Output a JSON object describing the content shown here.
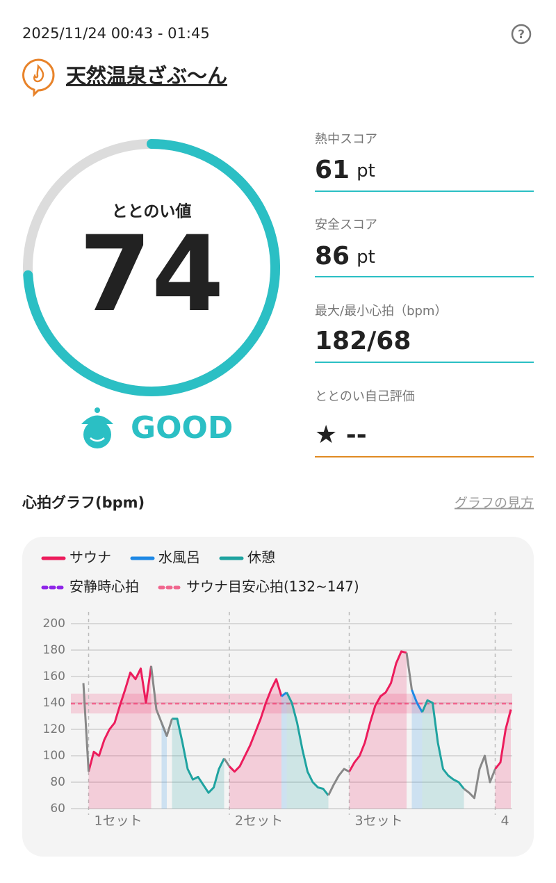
{
  "header": {
    "datetime": "2025/11/24 00:43 - 01:45",
    "facility": "天然温泉ざぶ〜ん"
  },
  "gauge": {
    "label": "ととのい値",
    "value": 74,
    "range": [
      0,
      100
    ],
    "color": "#2bbfc4",
    "status": "GOOD"
  },
  "scores": [
    {
      "label": "熱中スコア",
      "value": "61",
      "unit": "pt"
    },
    {
      "label": "安全スコア",
      "value": "86",
      "unit": "pt"
    },
    {
      "label": "最大/最小心拍（bpm）",
      "value": "182/68"
    },
    {
      "label": "ととのい自己評価",
      "value": "★ --"
    }
  ],
  "chart_header": {
    "title": "心拍グラフ(bpm)",
    "link": "グラフの見方"
  },
  "chart_data": {
    "type": "line",
    "categories": [
      null,
      "1セット",
      null,
      null,
      null,
      null,
      null,
      null,
      null,
      null,
      null,
      null,
      null,
      null,
      null,
      null,
      null,
      null,
      null,
      null,
      null,
      null,
      null,
      null,
      null,
      null,
      null,
      null,
      "2セット",
      null,
      null,
      null,
      null,
      null,
      null,
      null,
      null,
      null,
      null,
      null,
      null,
      null,
      null,
      null,
      null,
      null,
      null,
      null,
      null,
      null,
      null,
      "3セット",
      null,
      null,
      null,
      null,
      null,
      null,
      null,
      null,
      null,
      null,
      null,
      null,
      null,
      null,
      null,
      null,
      null,
      null,
      null,
      null,
      null,
      null,
      null,
      null,
      null,
      null,
      null,
      "4",
      null,
      null,
      null
    ],
    "series": [
      {
        "name": "サウナ",
        "color": "#ec1c5c",
        "area": true,
        "values": [
          null,
          88,
          103,
          100,
          112,
          120,
          125,
          138,
          150,
          163,
          158,
          166,
          140,
          168,
          null,
          null,
          null,
          null,
          null,
          null,
          null,
          null,
          null,
          null,
          null,
          null,
          null,
          null,
          92,
          88,
          92,
          100,
          108,
          118,
          128,
          140,
          150,
          158,
          145,
          null,
          null,
          null,
          null,
          null,
          null,
          null,
          null,
          null,
          null,
          null,
          null,
          88,
          95,
          100,
          110,
          125,
          138,
          145,
          148,
          155,
          170,
          179,
          178,
          null,
          null,
          null,
          null,
          null,
          null,
          null,
          null,
          null,
          null,
          null,
          null,
          null,
          null,
          null,
          null,
          90,
          95,
          120,
          135
        ]
      },
      {
        "name": "水風呂",
        "color": "#1e88e5",
        "area": true,
        "values": [
          null,
          null,
          null,
          null,
          null,
          null,
          null,
          null,
          null,
          null,
          null,
          null,
          null,
          null,
          null,
          125,
          115,
          null,
          null,
          null,
          null,
          null,
          null,
          null,
          null,
          null,
          null,
          null,
          null,
          null,
          null,
          null,
          null,
          null,
          null,
          null,
          null,
          null,
          145,
          148,
          null,
          null,
          null,
          null,
          null,
          null,
          null,
          null,
          null,
          null,
          null,
          null,
          null,
          null,
          null,
          null,
          null,
          null,
          null,
          null,
          null,
          null,
          null,
          150,
          140,
          133,
          null,
          null,
          null,
          null,
          null,
          null,
          null,
          null,
          null,
          null,
          null,
          null,
          null,
          null,
          null,
          null,
          null
        ]
      },
      {
        "name": "休憩",
        "color": "#1fa3a0",
        "area": true,
        "values": [
          null,
          null,
          null,
          null,
          null,
          null,
          null,
          null,
          null,
          null,
          null,
          null,
          null,
          null,
          null,
          null,
          null,
          128,
          128,
          110,
          90,
          82,
          84,
          78,
          72,
          76,
          90,
          98,
          null,
          null,
          null,
          null,
          null,
          null,
          null,
          null,
          null,
          null,
          null,
          148,
          140,
          125,
          105,
          88,
          80,
          76,
          75,
          70,
          null,
          null,
          null,
          null,
          null,
          null,
          null,
          null,
          null,
          null,
          null,
          null,
          null,
          null,
          null,
          null,
          null,
          133,
          142,
          140,
          110,
          90,
          85,
          82,
          80,
          75,
          null,
          null,
          null,
          null,
          null,
          null,
          null,
          null,
          null
        ]
      },
      {
        "color": "#888888",
        "area": false,
        "values": [
          155,
          88,
          null,
          null,
          null,
          null,
          null,
          null,
          null,
          null,
          null,
          null,
          null,
          168,
          135,
          125,
          115,
          128,
          null,
          null,
          null,
          null,
          null,
          null,
          null,
          null,
          null,
          98,
          92,
          null,
          null,
          null,
          null,
          null,
          null,
          null,
          null,
          null,
          null,
          null,
          null,
          null,
          null,
          null,
          null,
          null,
          null,
          70,
          78,
          85,
          90,
          88,
          null,
          null,
          null,
          null,
          null,
          null,
          null,
          null,
          null,
          null,
          178,
          150,
          null,
          null,
          null,
          null,
          null,
          null,
          null,
          null,
          null,
          75,
          72,
          68,
          90,
          100,
          80,
          90,
          null,
          null,
          null
        ]
      }
    ],
    "reference_lines": [
      {
        "name": "安静時心拍",
        "color": "#8e24e8"
      },
      {
        "name": "サウナ目安心拍(132~147)",
        "color": "#f0668e",
        "range": [
          132,
          147
        ]
      }
    ],
    "ylim": [
      60,
      200
    ],
    "yticks": [
      60,
      80,
      100,
      120,
      140,
      160,
      180,
      200
    ],
    "grid": true
  }
}
